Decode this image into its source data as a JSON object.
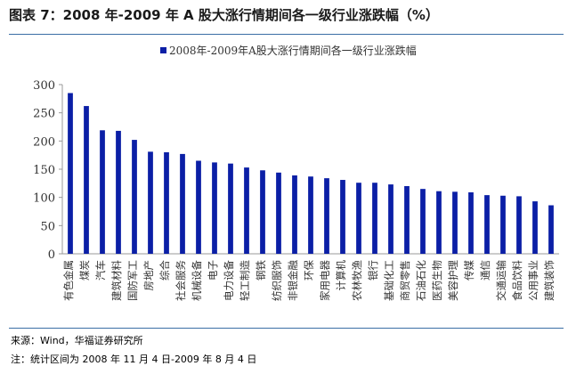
{
  "title": "图表 7：2008 年-2009 年 A 股大涨行情期间各一级行业涨跌幅（%）",
  "source": "来源：Wind，华福证券研究所",
  "note": "注：统计区间为 2008 年 11 月 4 日-2009 年 8 月 4 日",
  "colors": {
    "bar": "#0b1fa6",
    "axis": "#999999",
    "rule": "#3a6ea5"
  },
  "chart_data": {
    "type": "bar",
    "legend": "2008年-2009年A股大涨行情期间各一级行业涨跌幅",
    "legend_position": "top-center",
    "grid": false,
    "ylim": [
      0,
      300
    ],
    "yticks": [
      0,
      50,
      100,
      150,
      200,
      250,
      300
    ],
    "categories": [
      "有色金属",
      "煤炭",
      "汽车",
      "建筑材料",
      "国防军工",
      "房地产",
      "综合",
      "社会服务",
      "机械设备",
      "电子",
      "电力设备",
      "轻工制造",
      "钢铁",
      "纺织服饰",
      "非银金融",
      "环保",
      "家用电器",
      "计算机",
      "农林牧渔",
      "银行",
      "基础化工",
      "商贸零售",
      "石油石化",
      "医药生物",
      "美容护理",
      "传媒",
      "通信",
      "交通运输",
      "食品饮料",
      "公用事业",
      "建筑装饰"
    ],
    "values": [
      285,
      262,
      219,
      218,
      202,
      181,
      180,
      177,
      165,
      162,
      160,
      153,
      148,
      144,
      139,
      137,
      134,
      131,
      126,
      126,
      123,
      120,
      115,
      111,
      110,
      109,
      104,
      103,
      102,
      93,
      86
    ]
  }
}
